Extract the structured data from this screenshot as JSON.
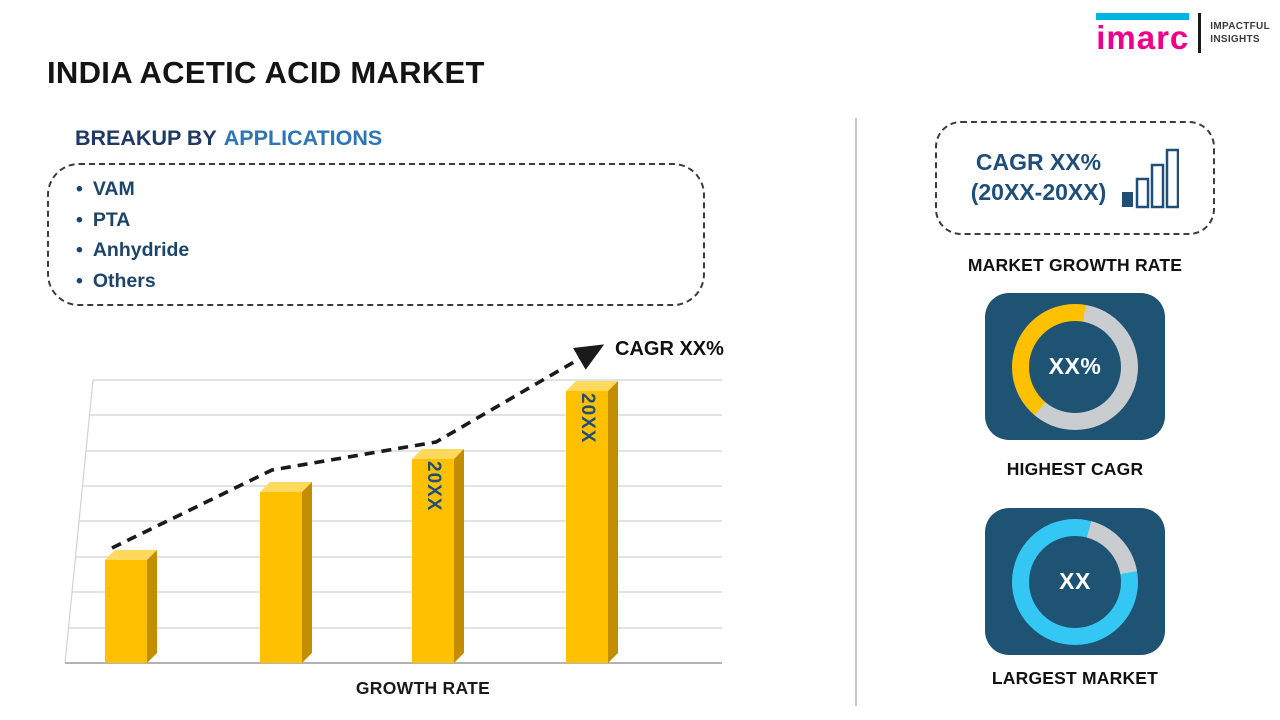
{
  "page": {
    "title": "INDIA ACETIC ACID MARKET"
  },
  "logo": {
    "brand": "imarc",
    "tagline1": "IMPACTFUL",
    "tagline2": "INSIGHTS"
  },
  "breakup": {
    "heading_prefix": "BREAKUP BY",
    "heading_highlight": "APPLICATIONS",
    "items": [
      {
        "label": "VAM"
      },
      {
        "label": "PTA"
      },
      {
        "label": "Anhydride"
      },
      {
        "label": "Others"
      }
    ]
  },
  "chart_data": {
    "type": "bar",
    "title": "",
    "xlabel": "GROWTH RATE",
    "ylabel": "",
    "categories": [
      "",
      "",
      "20XX",
      "20XX"
    ],
    "values": [
      38,
      63,
      75,
      100
    ],
    "value_note": "relative bar heights, axis has no numeric scale in source",
    "annotation": "CAGR XX%",
    "trendline": "dashed ascending arrow over bars",
    "grid": true,
    "legend": false,
    "bar_color": "#FFC000"
  },
  "sidebar": {
    "cagr_box": {
      "line1": "CAGR XX%",
      "line2": "(20XX-20XX)"
    },
    "market_growth_label": "MARKET GROWTH RATE",
    "highest_cagr": {
      "value": "XX%",
      "label": "HIGHEST CAGR",
      "accent": "#FFC000",
      "arc_start_deg": 220,
      "arc_sweep_deg": 150
    },
    "largest_market": {
      "value": "XX",
      "label": "LARGEST MARKET",
      "accent": "#35C7F4",
      "arc_start_deg": 80,
      "arc_sweep_deg": 295
    }
  },
  "colors": {
    "navy": "#1F4E79",
    "heading_dark": "#203864",
    "heading_blue": "#2E75B6",
    "bar_front": "#FFC000",
    "bar_top": "#FFD95C",
    "bar_side": "#C28E00",
    "card_bg": "#1E5374",
    "donut_gray": "#C9CDD0",
    "brand_pink": "#EC008C",
    "brand_cyan": "#00B5E2"
  }
}
